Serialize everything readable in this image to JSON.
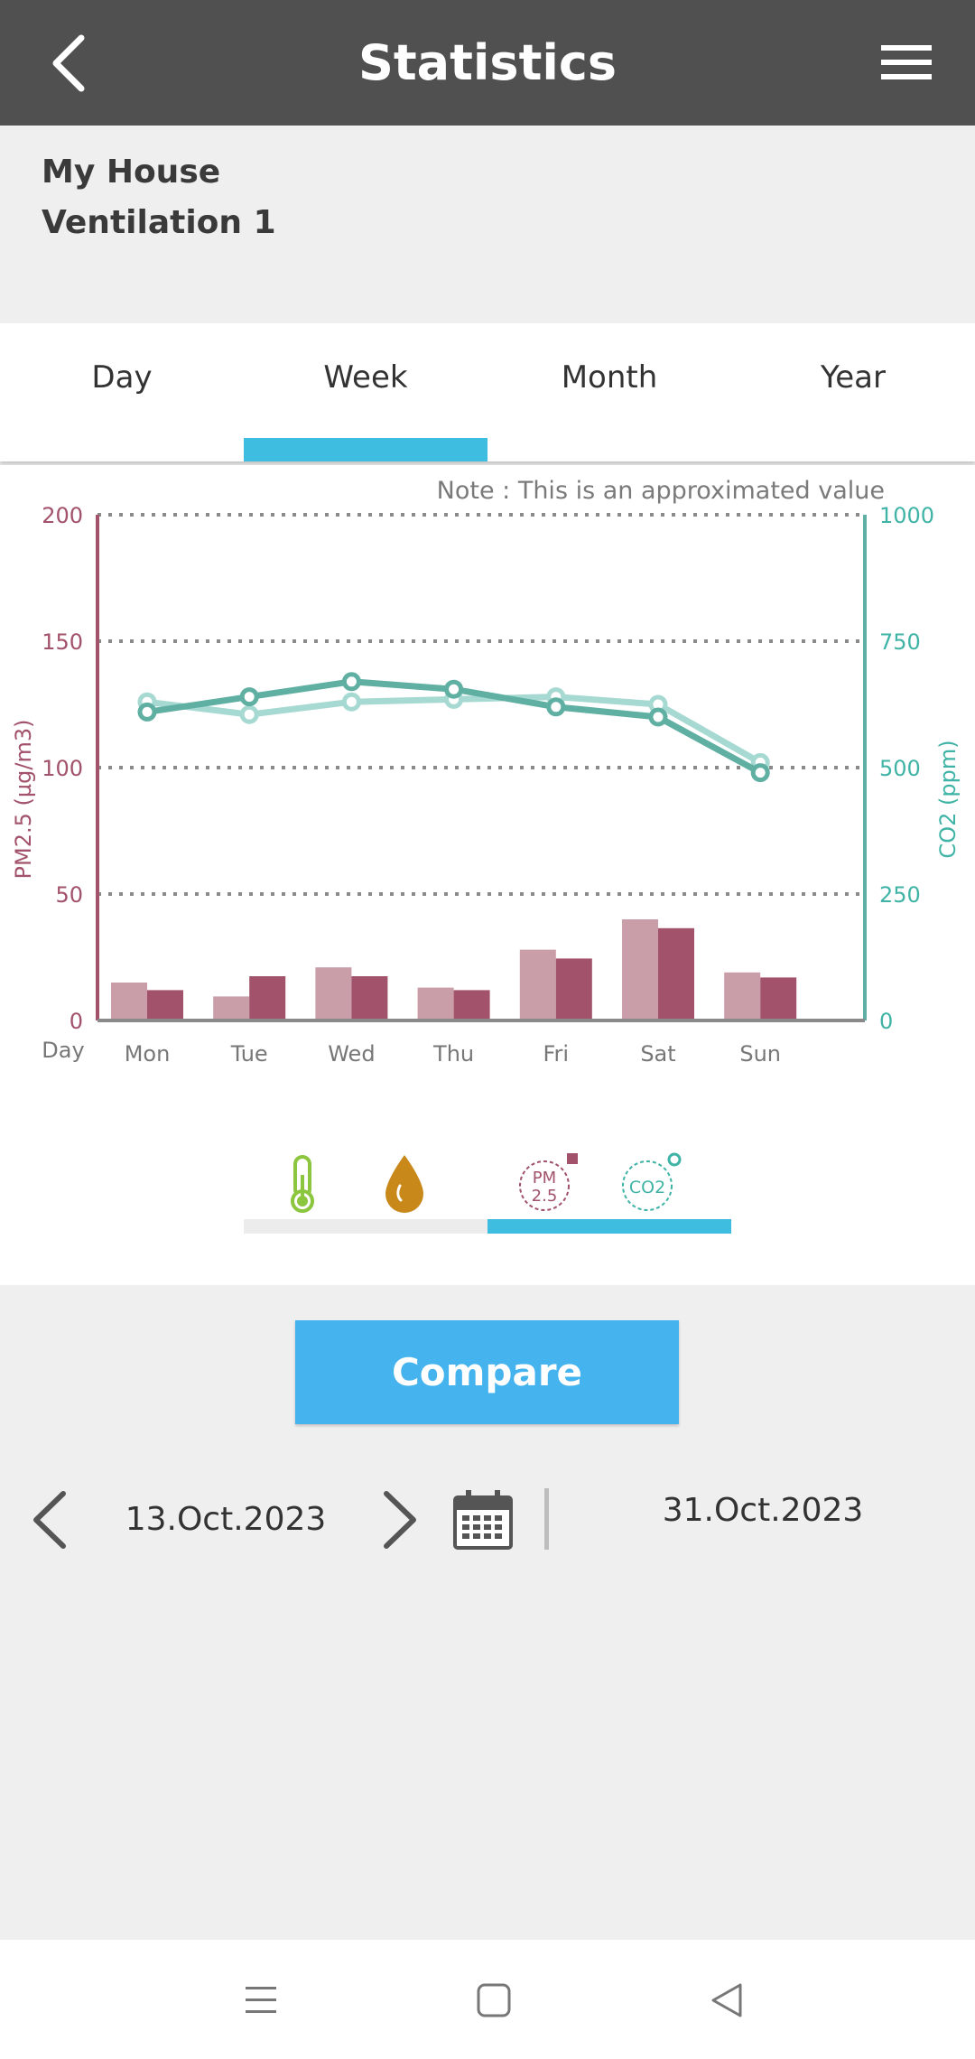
{
  "header": {
    "title": "Statistics",
    "back_icon": "chevron-left-icon",
    "menu_icon": "hamburger-menu-icon"
  },
  "device": {
    "location": "My House",
    "name": "Ventilation 1"
  },
  "tabs": [
    {
      "label": "Day",
      "active": false
    },
    {
      "label": "Week",
      "active": true
    },
    {
      "label": "Month",
      "active": false
    },
    {
      "label": "Year",
      "active": false
    }
  ],
  "colors": {
    "accent": "#3ebde0",
    "pm_dark": "#a2526a",
    "pm_light": "#c99ea8",
    "co2_dark": "#5fafa3",
    "co2_light": "#a6d9d2",
    "button": "#45b3ee"
  },
  "chart_data": {
    "type": "bar",
    "note": "Note : This is an approximated value",
    "xlabel": "Day",
    "categories": [
      "Mon",
      "Tue",
      "Wed",
      "Thu",
      "Fri",
      "Sat",
      "Sun"
    ],
    "y_left": {
      "label": "PM2.5 (µg/m3)",
      "range": [
        0,
        200
      ],
      "ticks": [
        "200",
        "150",
        "100",
        "50",
        "0"
      ]
    },
    "y_right": {
      "label": "CO2 (ppm)",
      "range": [
        0,
        1000
      ],
      "ticks": [
        "1000",
        "750",
        "500",
        "250",
        "0"
      ]
    },
    "grid": true,
    "bar_series": [
      {
        "values": [
          15,
          9.5,
          21,
          13,
          28,
          40,
          19
        ],
        "axis": "left"
      },
      {
        "values": [
          12,
          17.5,
          17.5,
          12,
          24.5,
          36.5,
          17
        ],
        "axis": "left"
      }
    ],
    "line_series": [
      {
        "values": [
          610,
          640,
          670,
          655,
          620,
          600,
          490
        ],
        "axis": "right"
      },
      {
        "values": [
          630,
          605,
          630,
          635,
          640,
          625,
          510
        ],
        "axis": "right"
      }
    ]
  },
  "sensors": [
    {
      "icon": "thermometer-icon"
    },
    {
      "icon": "humidity-drop-icon"
    },
    {
      "icon": "pm25-icon",
      "text_top": "PM",
      "text_bottom": "2.5"
    },
    {
      "icon": "co2-icon",
      "text": "CO2"
    }
  ],
  "compare": {
    "label": "Compare"
  },
  "dates": {
    "start": "13.Oct.2023",
    "end": "31.Oct.2023",
    "prev_icon": "chevron-left-icon",
    "next_icon": "chevron-right-icon",
    "calendar_icon": "calendar-icon"
  },
  "navbar": {
    "icons": [
      "recent-apps-icon",
      "home-icon",
      "back-icon"
    ]
  }
}
